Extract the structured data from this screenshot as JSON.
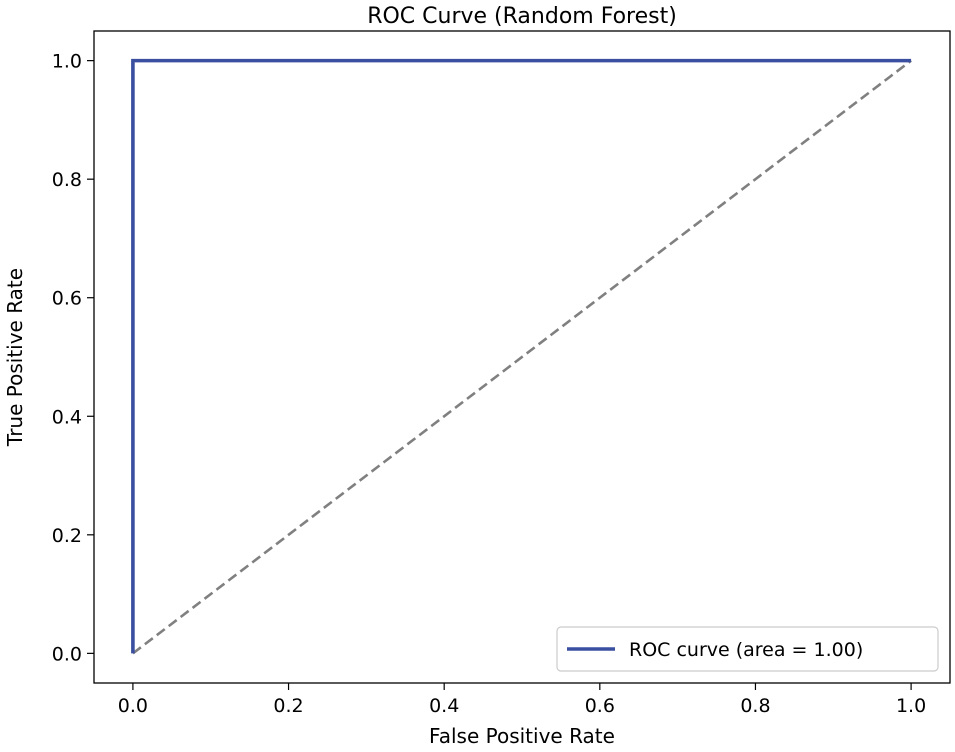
{
  "chart_data": {
    "type": "line",
    "title": "ROC Curve (Random Forest)",
    "xlabel": "False Positive Rate",
    "ylabel": "True Positive Rate",
    "xlim": [
      -0.05,
      1.05
    ],
    "ylim": [
      -0.05,
      1.05
    ],
    "xticks": [
      0.0,
      0.2,
      0.4,
      0.6,
      0.8,
      1.0
    ],
    "yticks": [
      0.0,
      0.2,
      0.4,
      0.6,
      0.8,
      1.0
    ],
    "xtick_labels": [
      "0.0",
      "0.2",
      "0.4",
      "0.6",
      "0.8",
      "1.0"
    ],
    "ytick_labels": [
      "0.0",
      "0.2",
      "0.4",
      "0.6",
      "0.8",
      "1.0"
    ],
    "grid": false,
    "legend_position": "lower-right",
    "series": [
      {
        "name": "ROC curve (area = 1.00)",
        "x": [
          0.0,
          0.0,
          1.0
        ],
        "y": [
          0.0,
          1.0,
          1.0
        ],
        "color": "#3a4fa0",
        "style": "solid"
      },
      {
        "x": [
          0.0,
          1.0
        ],
        "y": [
          0.0,
          1.0
        ],
        "color": "#808080",
        "style": "dashed"
      }
    ]
  }
}
